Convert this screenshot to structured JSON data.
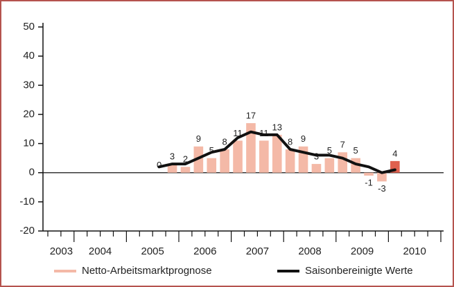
{
  "chart_data": {
    "type": "bar_line",
    "years": [
      "2003",
      "2004",
      "2005",
      "2006",
      "2007",
      "2008",
      "2009",
      "2010"
    ],
    "first_quarter": 3,
    "series": [
      {
        "name": "Netto-Arbeitsmarktprognose",
        "type": "bar",
        "color": "#f4b9a7",
        "highlight_color": "#e0604e",
        "values": [
          null,
          null,
          null,
          null,
          null,
          null,
          null,
          null,
          0,
          3,
          2,
          9,
          5,
          8,
          11,
          17,
          11,
          13,
          8,
          9,
          3,
          5,
          7,
          5,
          -1,
          -3,
          4,
          null,
          null,
          null
        ]
      },
      {
        "name": "Saisonbereinigte Werte",
        "type": "line",
        "color": "#111111",
        "values": [
          null,
          null,
          null,
          null,
          null,
          null,
          null,
          null,
          2,
          3,
          3,
          5,
          7,
          8,
          12,
          14,
          13,
          13,
          8,
          7,
          6,
          6,
          5,
          3,
          2,
          0,
          1,
          null,
          null,
          null
        ]
      }
    ],
    "ylim": [
      -20,
      50
    ],
    "yticks": [
      -20,
      -10,
      0,
      10,
      20,
      30,
      40,
      50
    ]
  }
}
